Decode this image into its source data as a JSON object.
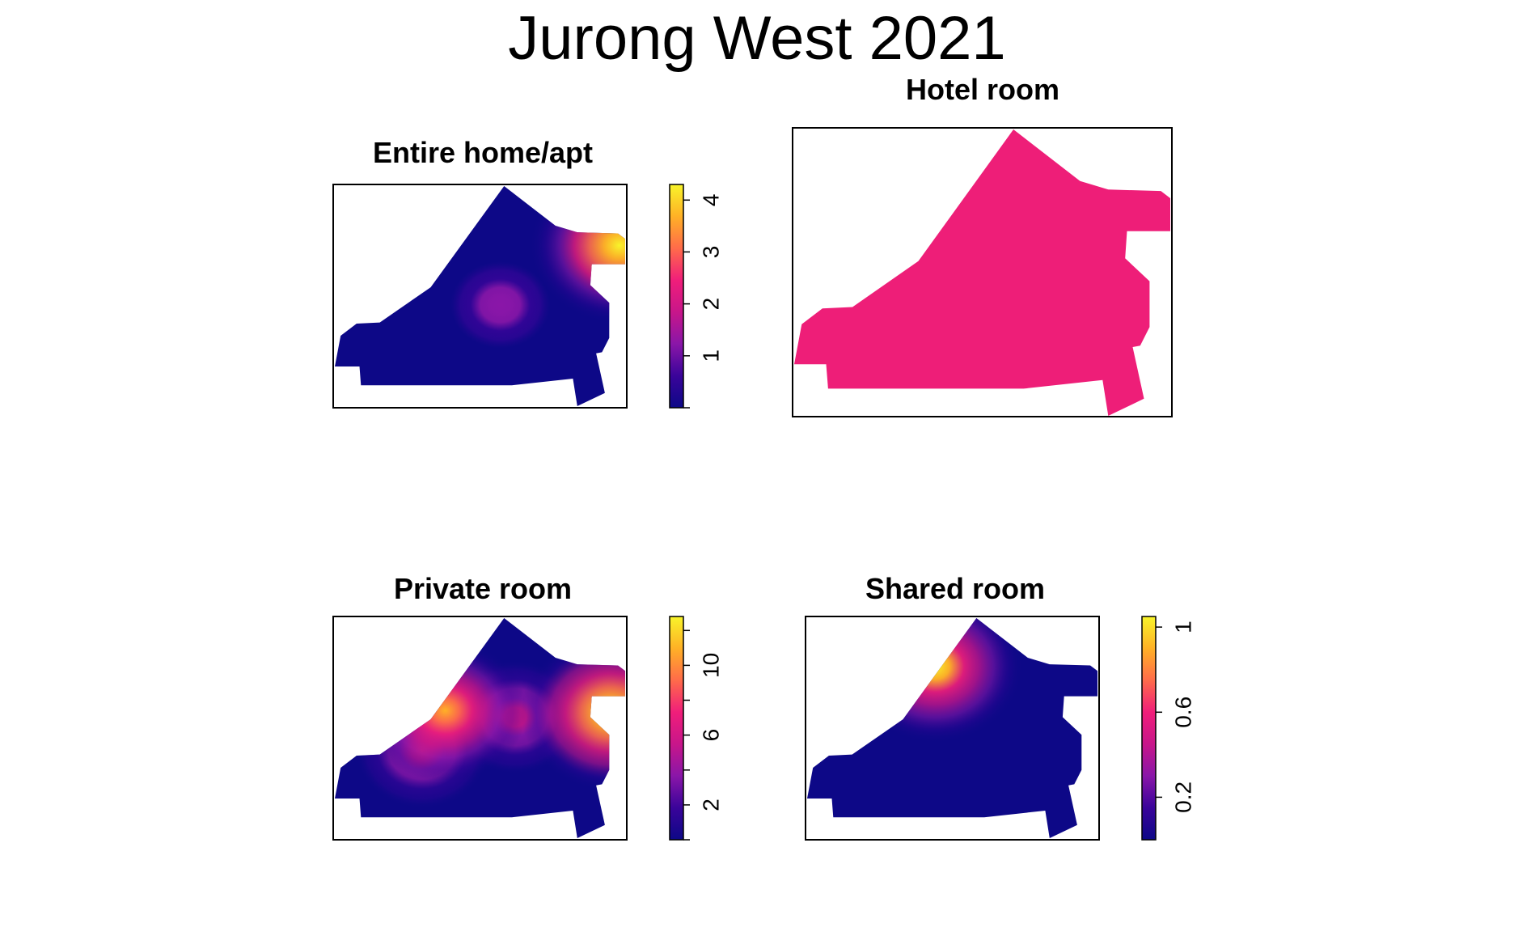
{
  "title": "Jurong West 2021",
  "palette": [
    "#0D0887",
    "#3A049A",
    "#8A16A8",
    "#C8168A",
    "#F01E7A",
    "#FF6B4A",
    "#FFB126",
    "#F8F42A"
  ],
  "chart_data": [
    {
      "type": "heatmap",
      "title": "Entire home/apt",
      "legend_ticks": [
        "1",
        "2",
        "3",
        "4"
      ],
      "legend_range": [
        0,
        4.3
      ],
      "hotspots": [
        {
          "x": 0.57,
          "y": 0.46,
          "value": 1.5
        },
        {
          "x": 0.98,
          "y": 0.73,
          "value": 4.3
        }
      ],
      "background_value": 0.05
    },
    {
      "type": "heatmap",
      "title": "Hotel room",
      "legend_ticks": [],
      "uniform_value": "constant",
      "fill_color": "#EE1E78"
    },
    {
      "type": "heatmap",
      "title": "Private room",
      "legend_ticks": [
        "2",
        "6",
        "10"
      ],
      "legend_range": [
        0,
        12.8
      ],
      "hotspots": [
        {
          "x": 0.95,
          "y": 0.57,
          "value": 12.8
        },
        {
          "x": 0.38,
          "y": 0.58,
          "value": 10.5
        },
        {
          "x": 0.3,
          "y": 0.4,
          "value": 6.5
        },
        {
          "x": 0.62,
          "y": 0.55,
          "value": 6.0
        }
      ],
      "background_value": 0.5
    },
    {
      "type": "heatmap",
      "title": "Shared room",
      "legend_ticks": [
        "0.2",
        "0.6",
        "1"
      ],
      "legend_range": [
        0,
        1.05
      ],
      "hotspots": [
        {
          "x": 0.44,
          "y": 0.78,
          "value": 1.0
        }
      ],
      "background_value": 0.0
    }
  ]
}
